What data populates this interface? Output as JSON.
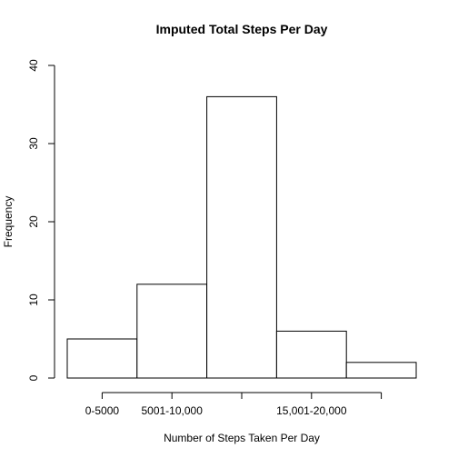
{
  "chart_data": {
    "type": "bar",
    "title": "Imputed Total Steps Per Day",
    "xlabel": "Number of Steps Taken Per Day",
    "ylabel": "Frequency",
    "bins": [
      {
        "start": 0,
        "end": 5000,
        "count": 5
      },
      {
        "start": 5000,
        "end": 10000,
        "count": 12
      },
      {
        "start": 10000,
        "end": 15000,
        "count": 36
      },
      {
        "start": 15000,
        "end": 20000,
        "count": 6
      },
      {
        "start": 20000,
        "end": 25000,
        "count": 2
      }
    ],
    "ylim": [
      0,
      40
    ],
    "yticks": [
      0,
      10,
      20,
      30,
      40
    ],
    "xticks": [
      {
        "value": 2500,
        "label": "0-5000"
      },
      {
        "value": 7500,
        "label": "5001-10,000"
      },
      {
        "value": 12500,
        "label": ""
      },
      {
        "value": 17500,
        "label": "15,001-20,000"
      },
      {
        "value": 22500,
        "label": ""
      }
    ],
    "grid": false,
    "bar_fill": "#ffffff",
    "bar_stroke": "#000000"
  }
}
